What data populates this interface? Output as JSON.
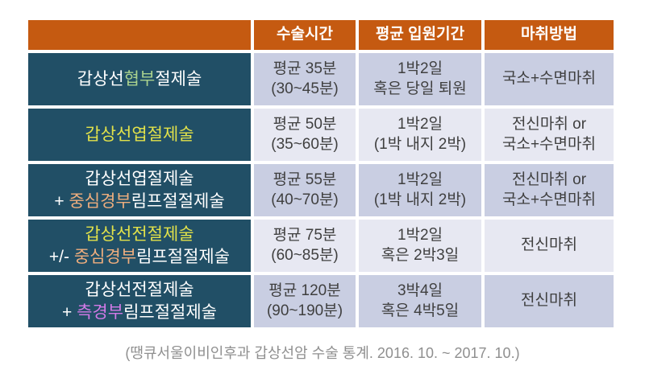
{
  "colors": {
    "page_bg": "#FFFFFF",
    "header_bg": "#C55A11",
    "label_bg": "#214F66",
    "band_dark": "#C9CEE2",
    "band_light": "#E7E8F2",
    "text_dark": "#3F3F3F",
    "caption": "#8F8F8F",
    "white": "#FFFFFF",
    "green": "#A9D18E",
    "yellow": "#E2E24A",
    "salmon": "#EFAE7E",
    "orchid": "#D37AE8"
  },
  "caption": "(땡큐서울이비인후과 갑상선암 수술 통계. 2016. 10. ~ 2017. 10.)",
  "table": {
    "headers": [
      "",
      "수술시간",
      "평균 입원기간",
      "마취방법"
    ],
    "rows": [
      {
        "procedure_lines": [
          [
            {
              "text": "갑상선",
              "color": "white"
            },
            {
              "text": "협부",
              "color": "green"
            },
            {
              "text": "절제술",
              "color": "white"
            }
          ]
        ],
        "time_lines": [
          "평균 35분",
          "(30~45분)"
        ],
        "stay_lines": [
          "1박2일",
          "혹은 당일 퇴원"
        ],
        "anesthesia_lines": [
          "국소+수면마취"
        ]
      },
      {
        "procedure_lines": [
          [
            {
              "text": "갑상선엽절제술",
              "color": "yellow"
            }
          ]
        ],
        "time_lines": [
          "평균 50분",
          "(35~60분)"
        ],
        "stay_lines": [
          "1박2일",
          "(1박 내지 2박)"
        ],
        "anesthesia_lines": [
          "전신마취 or",
          "국소+수면마취"
        ]
      },
      {
        "procedure_lines": [
          [
            {
              "text": "갑상선엽절제술",
              "color": "white"
            }
          ],
          [
            {
              "text": "+ ",
              "color": "white"
            },
            {
              "text": "중심경부",
              "color": "salmon"
            },
            {
              "text": "림프절절제술",
              "color": "white"
            }
          ]
        ],
        "time_lines": [
          "평균 55분",
          "(40~70분)"
        ],
        "stay_lines": [
          "1박2일",
          "(1박 내지 2박)"
        ],
        "anesthesia_lines": [
          "전신마취 or",
          "국소+수면마취"
        ]
      },
      {
        "procedure_lines": [
          [
            {
              "text": "갑상선전절제술",
              "color": "yellow"
            }
          ],
          [
            {
              "text": "+/- ",
              "color": "white"
            },
            {
              "text": "중심경부",
              "color": "salmon"
            },
            {
              "text": "림프절절제술",
              "color": "white"
            }
          ]
        ],
        "time_lines": [
          "평균 75분",
          "(60~85분)"
        ],
        "stay_lines": [
          "1박2일",
          "혹은 2박3일"
        ],
        "anesthesia_lines": [
          "전신마취"
        ]
      },
      {
        "procedure_lines": [
          [
            {
              "text": "갑상선전절제술",
              "color": "white"
            }
          ],
          [
            {
              "text": "+ ",
              "color": "white"
            },
            {
              "text": "측경부",
              "color": "orchid"
            },
            {
              "text": "림프절절제술",
              "color": "white"
            }
          ]
        ],
        "time_lines": [
          "평균 120분",
          "(90~190분)"
        ],
        "stay_lines": [
          "3박4일",
          "혹은 4박5일"
        ],
        "anesthesia_lines": [
          "전신마취"
        ]
      }
    ]
  },
  "chart_data": {
    "type": "table",
    "columns": [
      "",
      "수술시간",
      "평균 입원기간",
      "마취방법"
    ],
    "rows": [
      [
        "갑상선협부절제술",
        "평균 35분 (30~45분)",
        "1박2일 혹은 당일 퇴원",
        "국소+수면마취"
      ],
      [
        "갑상선엽절제술",
        "평균 50분 (35~60분)",
        "1박2일 (1박 내지 2박)",
        "전신마취 or 국소+수면마취"
      ],
      [
        "갑상선엽절제술 + 중심경부림프절절제술",
        "평균 55분 (40~70분)",
        "1박2일 (1박 내지 2박)",
        "전신마취 or 국소+수면마취"
      ],
      [
        "갑상선전절제술 +/- 중심경부림프절절제술",
        "평균 75분 (60~85분)",
        "1박2일 혹은 2박3일",
        "전신마취"
      ],
      [
        "갑상선전절제술 + 측경부림프절절제술",
        "평균 120분 (90~190분)",
        "3박4일 혹은 4박5일",
        "전신마취"
      ]
    ],
    "caption": "(땡큐서울이비인후과 갑상선암 수술 통계. 2016. 10. ~ 2017. 10.)"
  }
}
